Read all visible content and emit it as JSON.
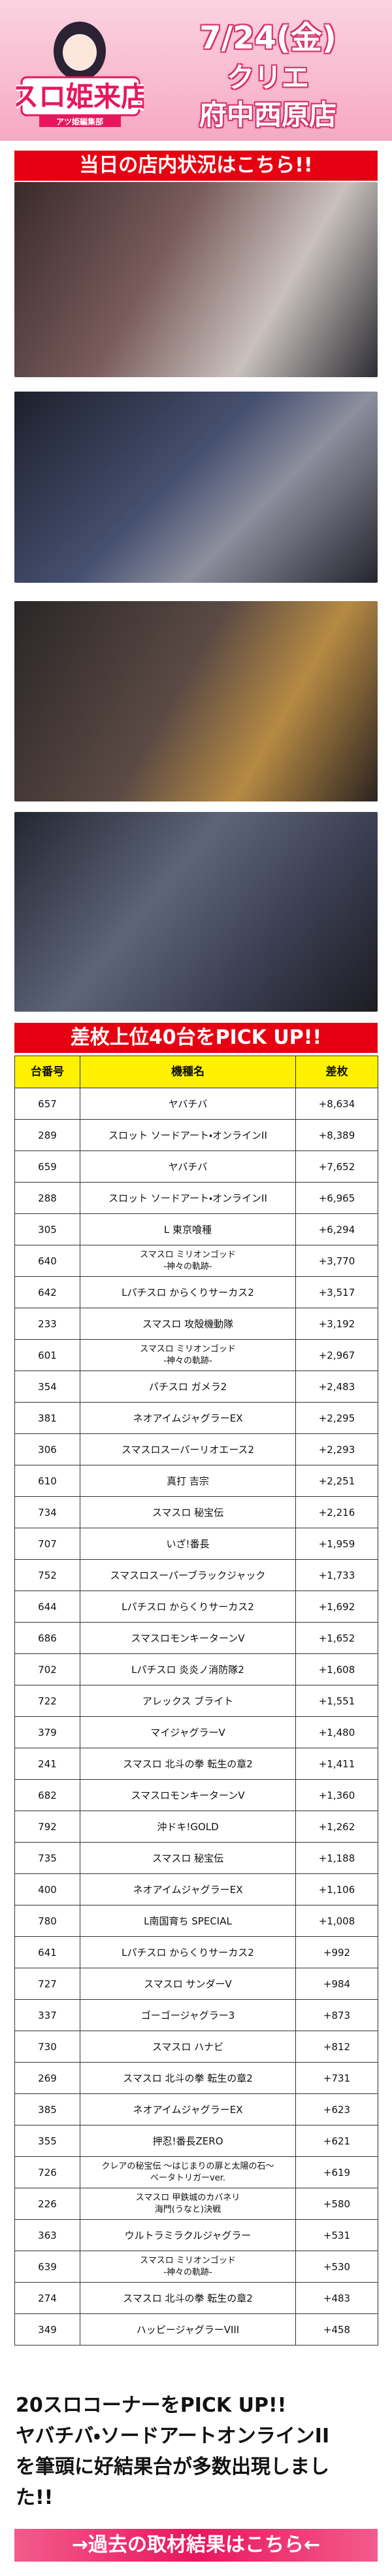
{
  "header": {
    "logo": "スロ姫来店",
    "logo_sub": "アツ姫編集部",
    "date": "7/24(金)",
    "shop_line1": "クリエ",
    "shop_line2": "府中西原店"
  },
  "section_status": {
    "title": "当日の店内状況はこちら!!"
  },
  "section_ranking": {
    "title": "差枚上位40台をPICK UP!!"
  },
  "table": {
    "header": [
      "台番号",
      "機種名",
      "差枚"
    ],
    "rows": [
      [
        "657",
        "ヤバチバ",
        "+8,634"
      ],
      [
        "289",
        "スロット ソードアート・オンラインII",
        "+8,389"
      ],
      [
        "659",
        "ヤバチバ",
        "+7,652"
      ],
      [
        "288",
        "スロット ソードアート・オンラインII",
        "+6,965"
      ],
      [
        "305",
        "L 東京喰種",
        "+6,294"
      ],
      [
        "640",
        "スマスロ ミリオンゴッド\n-神々の軌跡-",
        "+3,770"
      ],
      [
        "642",
        "Lパチスロ からくりサーカス2",
        "+3,517"
      ],
      [
        "233",
        "スマスロ 攻殻機動隊",
        "+3,192"
      ],
      [
        "601",
        "スマスロ ミリオンゴッド\n-神々の軌跡-",
        "+2,967"
      ],
      [
        "354",
        "パチスロ ガメラ2",
        "+2,483"
      ],
      [
        "381",
        "ネオアイムジャグラーEX",
        "+2,295"
      ],
      [
        "306",
        "スマスロスーパーリオエース2",
        "+2,293"
      ],
      [
        "610",
        "真打 吉宗",
        "+2,251"
      ],
      [
        "734",
        "スマスロ 秘宝伝",
        "+2,216"
      ],
      [
        "707",
        "いざ!番長",
        "+1,959"
      ],
      [
        "752",
        "スマスロスーパーブラックジャック",
        "+1,733"
      ],
      [
        "644",
        "Lパチスロ からくりサーカス2",
        "+1,692"
      ],
      [
        "686",
        "スマスロモンキーターンV",
        "+1,652"
      ],
      [
        "702",
        "Lパチスロ 炎炎ノ消防隊2",
        "+1,608"
      ],
      [
        "722",
        "アレックス ブライト",
        "+1,551"
      ],
      [
        "379",
        "マイジャグラーV",
        "+1,480"
      ],
      [
        "241",
        "スマスロ 北斗の拳 転生の章2",
        "+1,411"
      ],
      [
        "682",
        "スマスロモンキーターンV",
        "+1,360"
      ],
      [
        "792",
        "沖ドキ!GOLD",
        "+1,262"
      ],
      [
        "735",
        "スマスロ 秘宝伝",
        "+1,188"
      ],
      [
        "400",
        "ネオアイムジャグラーEX",
        "+1,106"
      ],
      [
        "780",
        "L南国育ち SPECIAL",
        "+1,008"
      ],
      [
        "641",
        "Lパチスロ からくりサーカス2",
        "+992"
      ],
      [
        "727",
        "スマスロ サンダーV",
        "+984"
      ],
      [
        "337",
        "ゴーゴージャグラー3",
        "+873"
      ],
      [
        "730",
        "スマスロ ハナビ",
        "+812"
      ],
      [
        "269",
        "スマスロ 北斗の拳 転生の章2",
        "+731"
      ],
      [
        "385",
        "ネオアイムジャグラーEX",
        "+623"
      ],
      [
        "355",
        "押忍!番長ZERO",
        "+621"
      ],
      [
        "726",
        "クレアの秘宝伝 ～はじまりの扉と太陽の石～\nベータトリガーver.",
        "+619"
      ],
      [
        "226",
        "スマスロ 甲鉄城のカバネリ\n海門(うなと)決戦",
        "+580"
      ],
      [
        "363",
        "ウルトラミラクルジャグラー",
        "+531"
      ],
      [
        "639",
        "スマスロ ミリオンゴッド\n-神々の軌跡-",
        "+530"
      ],
      [
        "274",
        "スマスロ 北斗の拳 転生の章2",
        "+483"
      ],
      [
        "349",
        "ハッピージャグラーVIII",
        "+458"
      ]
    ]
  },
  "summary": {
    "lines": [
      "20スロコーナーをPICK UP!!",
      "ヤバチバ・ソードアートオンラインII",
      "を筆頭に好結果台が多数出現しまし",
      "た!!"
    ]
  },
  "link": {
    "label": "→過去の取材結果はこちら←"
  }
}
